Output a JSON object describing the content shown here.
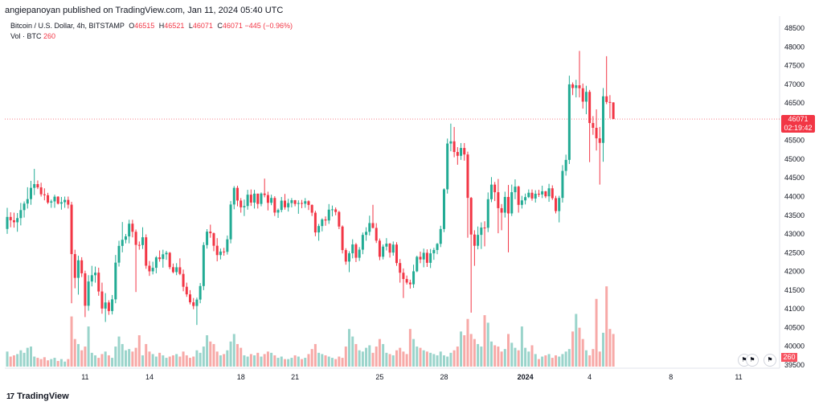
{
  "header": {
    "published": "angiepanoyan published on TradingView.com, Jan 11, 2024 05:40 UTC"
  },
  "legend": {
    "symbol": "Bitcoin / U.S. Dollar, 4h, BITSTAMP",
    "o_label": "O",
    "o_value": "46515",
    "h_label": "H",
    "h_value": "46521",
    "l_label": "L",
    "l_value": "46071",
    "c_label": "C",
    "c_value": "46071",
    "change": "−445 (−0.96%)",
    "vol_label": "Vol · BTC",
    "vol_value": "260"
  },
  "price_tag": {
    "price": "46071",
    "countdown": "02:19:42"
  },
  "vol_tag": "260",
  "branding": "TradingView",
  "colors": {
    "up": "#22ab94",
    "down": "#f23645",
    "up_vol": "#9ad4cb",
    "down_vol": "#f7a9a7"
  },
  "chart_data": {
    "type": "candlestick",
    "title": "Bitcoin / U.S. Dollar, 4h, BITSTAMP",
    "interval": "4h",
    "y_ticks": [
      39500,
      40000,
      40500,
      41000,
      41500,
      42000,
      42500,
      43000,
      43500,
      44000,
      44500,
      45000,
      45500,
      46000,
      46500,
      47000,
      47500,
      48000,
      48500
    ],
    "ylim": [
      39400,
      48700
    ],
    "x_ticks": [
      "11",
      "14",
      "18",
      "21",
      "25",
      "28",
      "2024",
      "4",
      "8",
      "11"
    ],
    "x_tick_bar_index": [
      23,
      42,
      69,
      85,
      110,
      129,
      153,
      172,
      196,
      216
    ],
    "last_price": 46071,
    "grid": false,
    "candles": [
      [
        43135,
        43700,
        43004,
        43456
      ],
      [
        43456,
        43580,
        43180,
        43367
      ],
      [
        43367,
        43570,
        43170,
        43313
      ],
      [
        43313,
        43560,
        43060,
        43425
      ],
      [
        43425,
        43830,
        43230,
        43639
      ],
      [
        43639,
        43870,
        43440,
        43813
      ],
      [
        43813,
        44250,
        43680,
        43932
      ],
      [
        43932,
        44420,
        43780,
        44233
      ],
      [
        44233,
        44740,
        44040,
        44333
      ],
      [
        44333,
        44430,
        44200,
        44246
      ],
      [
        44246,
        44370,
        44000,
        44061
      ],
      [
        44061,
        44220,
        43900,
        44036
      ],
      [
        44036,
        44100,
        43800,
        43840
      ],
      [
        43840,
        43920,
        43700,
        43871
      ],
      [
        43871,
        44050,
        43700,
        43997
      ],
      [
        43997,
        44010,
        43790,
        43811
      ],
      [
        43811,
        43990,
        43650,
        43849
      ],
      [
        43849,
        44000,
        43700,
        43911
      ],
      [
        43911,
        44000,
        43680,
        43784
      ],
      [
        43784,
        43860,
        41150,
        42463
      ],
      [
        42463,
        42580,
        41550,
        41828
      ],
      [
        41828,
        42420,
        41380,
        42297
      ],
      [
        42297,
        42380,
        41850,
        41950
      ],
      [
        41950,
        42020,
        40780,
        41083
      ],
      [
        41083,
        41900,
        40950,
        41731
      ],
      [
        41731,
        42150,
        41600,
        41899
      ],
      [
        41899,
        42130,
        41700,
        41967
      ],
      [
        41967,
        42100,
        41350,
        41464
      ],
      [
        41464,
        41700,
        40870,
        41008
      ],
      [
        41008,
        41420,
        40650,
        41171
      ],
      [
        41171,
        41230,
        40840,
        40942
      ],
      [
        40942,
        41370,
        40850,
        41254
      ],
      [
        41254,
        42440,
        41150,
        42235
      ],
      [
        42235,
        42820,
        42130,
        42682
      ],
      [
        42682,
        43320,
        42510,
        42846
      ],
      [
        42846,
        43000,
        42750,
        42936
      ],
      [
        42936,
        43380,
        42750,
        43276
      ],
      [
        43276,
        43380,
        42910,
        43060
      ],
      [
        43060,
        43120,
        41450,
        42709
      ],
      [
        42709,
        42800,
        42580,
        42704
      ],
      [
        42704,
        43180,
        42600,
        42912
      ],
      [
        42912,
        42990,
        42070,
        42153
      ],
      [
        42153,
        42280,
        41880,
        42002
      ],
      [
        42002,
        42260,
        41920,
        42097
      ],
      [
        42097,
        42410,
        41950,
        42376
      ],
      [
        42376,
        42560,
        42260,
        42330
      ],
      [
        42330,
        42580,
        42100,
        42458
      ],
      [
        42458,
        42550,
        42310,
        42499
      ],
      [
        42499,
        42520,
        42060,
        42114
      ],
      [
        42114,
        42210,
        41950,
        41982
      ],
      [
        41982,
        42220,
        41900,
        42111
      ],
      [
        42111,
        42350,
        41900,
        41934
      ],
      [
        41934,
        42050,
        41470,
        41590
      ],
      [
        41590,
        41700,
        41320,
        41387
      ],
      [
        41387,
        41500,
        41120,
        41176
      ],
      [
        41176,
        41290,
        40990,
        41077
      ],
      [
        41077,
        41300,
        40570,
        41248
      ],
      [
        41248,
        41690,
        41150,
        41609
      ],
      [
        41609,
        42780,
        41500,
        42705
      ],
      [
        42705,
        43130,
        42610,
        43063
      ],
      [
        43063,
        43250,
        42900,
        43021
      ],
      [
        43021,
        43040,
        42540,
        42686
      ],
      [
        42686,
        42890,
        42270,
        42437
      ],
      [
        42437,
        42610,
        42320,
        42531
      ],
      [
        42531,
        42630,
        42420,
        42523
      ],
      [
        42523,
        42960,
        42450,
        42858
      ],
      [
        42858,
        43880,
        42750,
        43788
      ],
      [
        43788,
        44280,
        43660,
        44233
      ],
      [
        44233,
        44290,
        43740,
        43893
      ],
      [
        43893,
        43960,
        43570,
        43713
      ],
      [
        43713,
        43920,
        43480,
        43748
      ],
      [
        43748,
        44180,
        43650,
        44051
      ],
      [
        44051,
        44190,
        43750,
        43839
      ],
      [
        43839,
        44180,
        43680,
        44078
      ],
      [
        44078,
        44080,
        43680,
        43804
      ],
      [
        43804,
        44110,
        43740,
        44081
      ],
      [
        44081,
        44480,
        43980,
        44041
      ],
      [
        44041,
        44130,
        43630,
        43833
      ],
      [
        43833,
        44050,
        43770,
        43963
      ],
      [
        43963,
        44010,
        43480,
        43572
      ],
      [
        43572,
        43680,
        43430,
        43642
      ],
      [
        43642,
        43990,
        43580,
        43891
      ],
      [
        43891,
        44070,
        43650,
        43713
      ],
      [
        43713,
        43940,
        43600,
        43826
      ],
      [
        43826,
        43960,
        43710,
        43902
      ],
      [
        43902,
        43910,
        43740,
        43803
      ],
      [
        43803,
        43900,
        43540,
        43828
      ],
      [
        43828,
        43910,
        43690,
        43809
      ],
      [
        43809,
        43960,
        43700,
        43876
      ],
      [
        43876,
        43900,
        43640,
        43777
      ],
      [
        43777,
        43790,
        43480,
        43569
      ],
      [
        43569,
        43620,
        42940,
        43042
      ],
      [
        43042,
        43270,
        42820,
        43212
      ],
      [
        43212,
        43420,
        43070,
        43389
      ],
      [
        43389,
        43470,
        43220,
        43361
      ],
      [
        43361,
        43800,
        43270,
        43651
      ],
      [
        43651,
        43760,
        43470,
        43658
      ],
      [
        43658,
        43710,
        43500,
        43588
      ],
      [
        43588,
        43620,
        43130,
        43199
      ],
      [
        43199,
        43230,
        42480,
        42570
      ],
      [
        42570,
        42620,
        42180,
        42263
      ],
      [
        42263,
        42540,
        41980,
        42484
      ],
      [
        42484,
        42860,
        42350,
        42721
      ],
      [
        42721,
        42760,
        42250,
        42365
      ],
      [
        42365,
        42650,
        42280,
        42581
      ],
      [
        42581,
        43040,
        42460,
        42976
      ],
      [
        42976,
        43180,
        42820,
        43058
      ],
      [
        43058,
        43490,
        42960,
        43292
      ],
      [
        43292,
        43780,
        43150,
        43163
      ],
      [
        43163,
        43290,
        42760,
        42822
      ],
      [
        42822,
        42880,
        42300,
        42392
      ],
      [
        42392,
        42720,
        42320,
        42663
      ],
      [
        42663,
        42890,
        42560,
        42743
      ],
      [
        42743,
        42760,
        42370,
        42503
      ],
      [
        42503,
        42800,
        42420,
        42717
      ],
      [
        42717,
        42780,
        42150,
        42224
      ],
      [
        42224,
        42330,
        41700,
        41965
      ],
      [
        41965,
        42080,
        41290,
        41797
      ],
      [
        41797,
        41890,
        41650,
        41702
      ],
      [
        41702,
        41780,
        41540,
        41656
      ],
      [
        41656,
        42180,
        41560,
        42003
      ],
      [
        42003,
        42420,
        41980,
        42390
      ],
      [
        42390,
        42530,
        42220,
        42320
      ],
      [
        42320,
        42610,
        42110,
        42498
      ],
      [
        42498,
        42590,
        42120,
        42230
      ],
      [
        42230,
        42600,
        42090,
        42483
      ],
      [
        42483,
        42630,
        42310,
        42573
      ],
      [
        42573,
        42760,
        42460,
        42737
      ],
      [
        42737,
        43220,
        42650,
        43133
      ],
      [
        43133,
        44220,
        43050,
        44193
      ],
      [
        44193,
        45550,
        44080,
        45417
      ],
      [
        45417,
        45950,
        45210,
        45476
      ],
      [
        45476,
        45860,
        45050,
        45191
      ],
      [
        45191,
        45320,
        44850,
        45089
      ],
      [
        45089,
        45430,
        44980,
        45298
      ],
      [
        45298,
        45430,
        44960,
        45124
      ],
      [
        45124,
        45200,
        42900,
        43965
      ],
      [
        43965,
        43990,
        40900,
        42986
      ],
      [
        42986,
        43100,
        42150,
        42685
      ],
      [
        42685,
        43200,
        42590,
        42977
      ],
      [
        42977,
        43310,
        42600,
        43172
      ],
      [
        43172,
        43340,
        42670,
        43166
      ],
      [
        43166,
        44110,
        43050,
        43929
      ],
      [
        43929,
        44520,
        43850,
        44319
      ],
      [
        44319,
        44390,
        43880,
        44116
      ],
      [
        44116,
        44470,
        43020,
        43690
      ],
      [
        43690,
        43800,
        43100,
        43570
      ],
      [
        43570,
        44130,
        43440,
        43990
      ],
      [
        43990,
        44310,
        42510,
        43550
      ],
      [
        43550,
        44320,
        43480,
        44117
      ],
      [
        44117,
        44460,
        43930,
        44266
      ],
      [
        44266,
        44290,
        43570,
        43778
      ],
      [
        43778,
        44020,
        43680,
        43898
      ],
      [
        43898,
        44080,
        43790,
        43985
      ],
      [
        43985,
        44190,
        43960,
        44102
      ],
      [
        44102,
        44190,
        43890,
        43948
      ],
      [
        43948,
        44170,
        43840,
        44076
      ],
      [
        44076,
        44180,
        43990,
        44056
      ],
      [
        44056,
        44290,
        43960,
        44141
      ],
      [
        44141,
        44150,
        43960,
        44007
      ],
      [
        44007,
        44340,
        43860,
        44221
      ],
      [
        44221,
        44300,
        43910,
        43957
      ],
      [
        43957,
        44020,
        43550,
        43612
      ],
      [
        43612,
        44020,
        43310,
        43964
      ],
      [
        43964,
        44840,
        43840,
        44686
      ],
      [
        44686,
        45120,
        44560,
        44980
      ],
      [
        44980,
        47230,
        44870,
        46998
      ],
      [
        46998,
        47050,
        46710,
        46901
      ],
      [
        46901,
        47120,
        46650,
        46973
      ],
      [
        46973,
        47890,
        46650,
        46894
      ],
      [
        46894,
        47020,
        46350,
        46536
      ],
      [
        46536,
        46960,
        46200,
        46798
      ],
      [
        46798,
        46850,
        44920,
        45965
      ],
      [
        45965,
        46150,
        45650,
        45837
      ],
      [
        45837,
        46330,
        45230,
        45557
      ],
      [
        45557,
        45860,
        44320,
        45434
      ],
      [
        45434,
        46900,
        44930,
        46679
      ],
      [
        46679,
        47750,
        46470,
        46527
      ],
      [
        46527,
        46710,
        46090,
        46515
      ],
      [
        46515,
        46521,
        46071,
        46071
      ]
    ],
    "volumes": [
      120,
      80,
      90,
      100,
      130,
      110,
      150,
      160,
      80,
      70,
      60,
      75,
      50,
      60,
      70,
      45,
      60,
      40,
      60,
      400,
      220,
      180,
      130,
      160,
      320,
      110,
      90,
      70,
      100,
      120,
      90,
      70,
      160,
      240,
      180,
      130,
      140,
      120,
      150,
      250,
      90,
      180,
      120,
      100,
      80,
      110,
      90,
      70,
      80,
      90,
      100,
      80,
      120,
      90,
      70,
      80,
      130,
      110,
      160,
      250,
      200,
      180,
      120,
      90,
      100,
      130,
      200,
      260,
      180,
      150,
      90,
      80,
      100,
      90,
      110,
      80,
      100,
      120,
      110,
      90,
      70,
      80,
      60,
      60,
      70,
      90,
      80,
      60,
      70,
      100,
      140,
      180,
      110,
      100,
      90,
      80,
      70,
      60,
      80,
      70,
      160,
      300,
      240,
      180,
      130,
      120,
      150,
      170,
      110,
      160,
      220,
      180,
      110,
      100,
      90,
      130,
      150,
      120,
      100,
      300,
      220,
      160,
      150,
      130,
      120,
      110,
      100,
      90,
      120,
      90,
      80,
      110,
      130,
      160,
      280,
      250,
      380,
      260,
      220,
      180,
      160,
      410,
      350,
      200,
      170,
      160,
      120,
      140,
      260,
      190,
      150,
      130,
      320,
      150,
      120,
      170,
      100,
      60,
      80,
      90,
      100,
      70,
      90,
      80,
      100,
      120,
      140,
      280,
      420,
      310,
      220,
      130,
      90,
      140,
      540,
      120,
      270,
      640,
      300,
      260
    ]
  }
}
